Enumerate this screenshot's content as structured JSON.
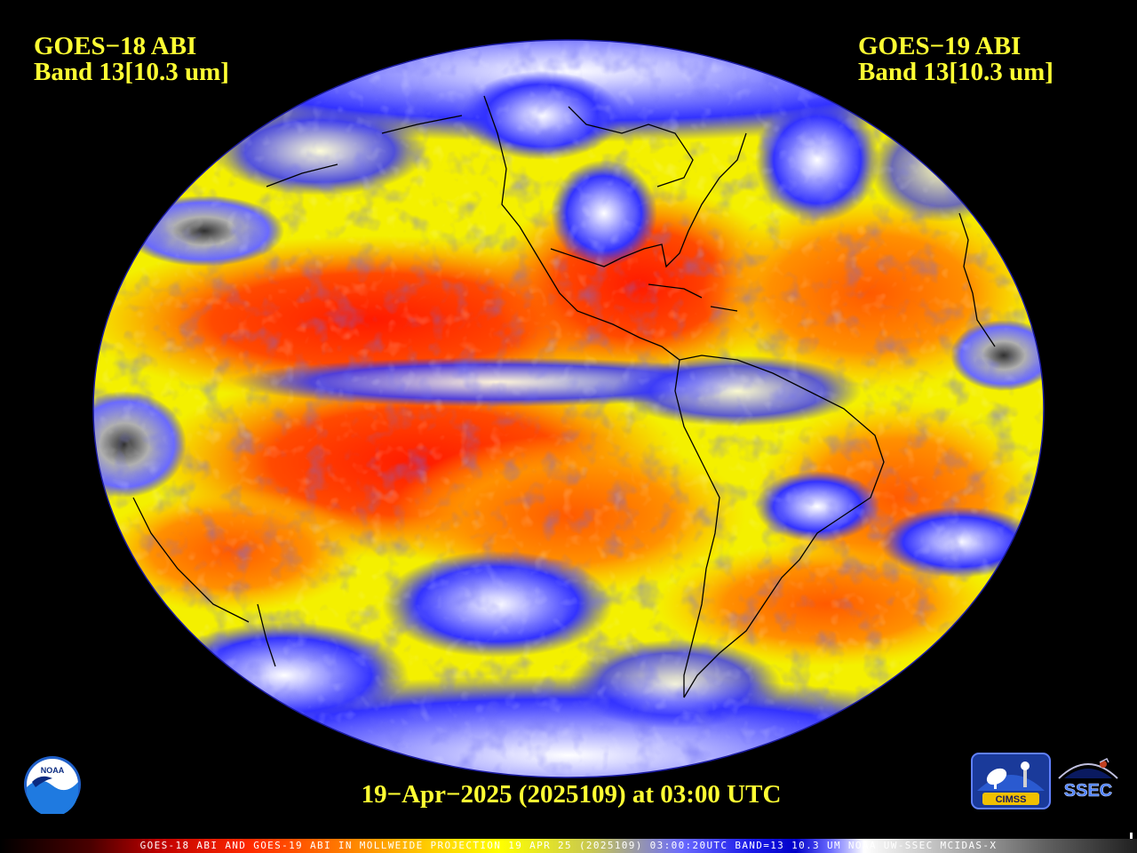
{
  "map": {
    "projection": "Mollweide",
    "colors": {
      "warm": "#ff2a00",
      "mid": "#ff8a00",
      "yellow": "#ffff00",
      "cold_blue": "#3232ff",
      "cold_white": "#ffffff",
      "coast": "#000000",
      "background": "#000000"
    }
  },
  "left_label": {
    "line1": "GOES−18 ABI",
    "line2": "Band 13[10.3 um]"
  },
  "right_label": {
    "line1": "GOES−19 ABI",
    "line2": "Band 13[10.3 um]"
  },
  "timestamp": "19−Apr−2025 (2025109) at 03:00 UTC",
  "footer": "GOES-18 ABI AND GOES-19 ABI IN MOLLWEIDE PROJECTION 19 APR 25 (2025109) 03:00:20UTC BAND=13 10.3 UM NOAA UW-SSEC MCIDAS-X",
  "logos": {
    "noaa": {
      "text": "NOAA",
      "icon": "noaa-logo-icon"
    },
    "cimss": {
      "text": "CIMSS",
      "icon": "cimss-logo-icon"
    },
    "ssec": {
      "text": "SSEC",
      "icon": "ssec-logo-icon"
    }
  }
}
